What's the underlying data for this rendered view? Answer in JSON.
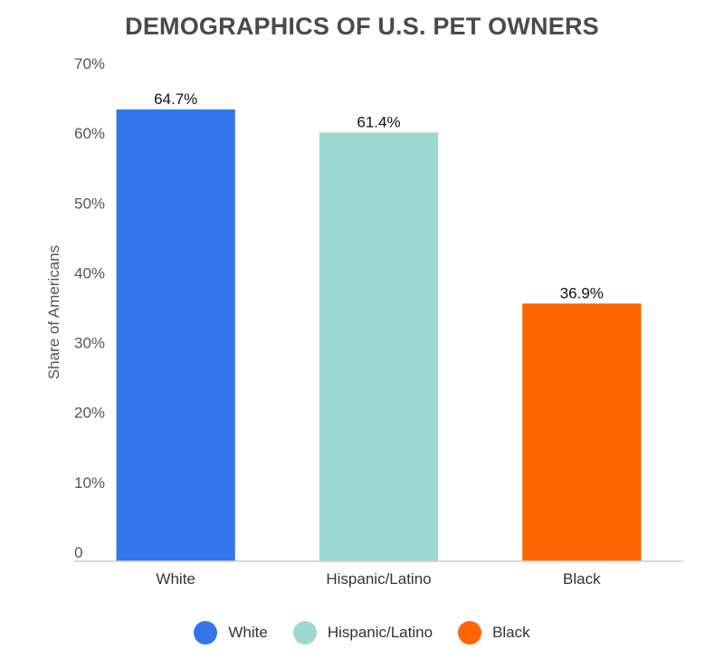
{
  "chart_data": {
    "type": "bar",
    "title": "DEMOGRAPHICS OF U.S. PET OWNERS",
    "xlabel": "",
    "ylabel": "Share of Americans",
    "ylim": [
      0,
      70
    ],
    "yticks": [
      0,
      10,
      20,
      30,
      40,
      50,
      60,
      70
    ],
    "ytick_labels": [
      "0",
      "10%",
      "20%",
      "30%",
      "40%",
      "50%",
      "60%",
      "70%"
    ],
    "categories": [
      "White",
      "Hispanic/Latino",
      "Black"
    ],
    "values": [
      64.7,
      61.4,
      36.9
    ],
    "data_labels": [
      "64.7%",
      "61.4%",
      "36.9%"
    ],
    "colors": [
      "#3475ea",
      "#9ed8d2",
      "#ff6500"
    ],
    "grid": false,
    "legend": {
      "placement": "bottom",
      "entries": [
        "White",
        "Hispanic/Latino",
        "Black"
      ]
    }
  }
}
